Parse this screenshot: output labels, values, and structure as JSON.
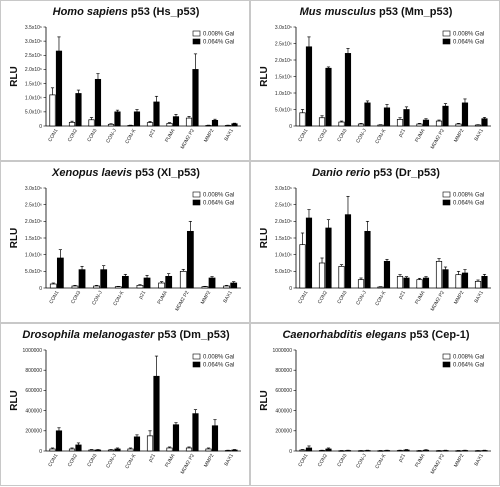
{
  "chart_data": [
    {
      "type": "bar",
      "title_parts": [
        {
          "text": "Homo sapiens",
          "italic": true
        },
        {
          "text": " p53 (Hs_p53)",
          "italic": false
        }
      ],
      "ylabel": "RLU",
      "ylim": [
        0,
        3500000
      ],
      "yticks": [
        0,
        500000,
        1000000,
        1500000,
        2000000,
        2500000,
        3000000,
        3500000
      ],
      "ytick_labels": [
        "0",
        "5.0x10⁵",
        "1.0x10⁶",
        "1.5x10⁶",
        "2.0x10⁶",
        "2.5x10⁶",
        "3.0x10⁶",
        "3.5x10⁶"
      ],
      "categories": [
        "CON1",
        "CON2",
        "CON3",
        "CON-J",
        "CON-K",
        "p21",
        "PUMA",
        "MDM2 P2",
        "MMP2",
        "BAX1"
      ],
      "legend_position": "top-right",
      "series": [
        {
          "name": "0.008% Gal",
          "fill": "#ffffff",
          "values": [
            1100000,
            130000,
            220000,
            60000,
            20000,
            120000,
            90000,
            280000,
            20000,
            20000
          ],
          "errors": [
            250000,
            40000,
            80000,
            20000,
            10000,
            40000,
            30000,
            60000,
            10000,
            10000
          ]
        },
        {
          "name": "0.064% Gal",
          "fill": "#000000",
          "values": [
            2650000,
            1150000,
            1650000,
            500000,
            500000,
            850000,
            330000,
            2000000,
            200000,
            80000
          ],
          "errors": [
            500000,
            120000,
            200000,
            60000,
            80000,
            200000,
            80000,
            550000,
            40000,
            20000
          ]
        }
      ]
    },
    {
      "type": "bar",
      "title_parts": [
        {
          "text": "Mus musculus",
          "italic": true
        },
        {
          "text": " p53 (Mm_p53)",
          "italic": false
        }
      ],
      "ylabel": "RLU",
      "ylim": [
        0,
        3000000
      ],
      "yticks": [
        0,
        500000,
        1000000,
        1500000,
        2000000,
        2500000,
        3000000
      ],
      "ytick_labels": [
        "0",
        "5.0x10⁵",
        "1.0x10⁶",
        "1.5x10⁶",
        "2.0x10⁶",
        "2.5x10⁶",
        "3.0x10⁶"
      ],
      "categories": [
        "CON1",
        "CON2",
        "CON3",
        "CON-J",
        "CON-K",
        "p21",
        "PUMA",
        "MDM2 P2",
        "MMP2",
        "BAX1"
      ],
      "legend_position": "top-right",
      "series": [
        {
          "name": "0.008% Gal",
          "fill": "#ffffff",
          "values": [
            400000,
            250000,
            120000,
            60000,
            30000,
            200000,
            60000,
            150000,
            60000,
            30000
          ],
          "errors": [
            100000,
            60000,
            30000,
            20000,
            10000,
            50000,
            20000,
            30000,
            20000,
            10000
          ]
        },
        {
          "name": "0.064% Gal",
          "fill": "#000000",
          "values": [
            2400000,
            1750000,
            2200000,
            700000,
            550000,
            500000,
            180000,
            600000,
            700000,
            220000
          ],
          "errors": [
            300000,
            40000,
            150000,
            60000,
            100000,
            80000,
            40000,
            80000,
            120000,
            40000
          ]
        }
      ]
    },
    {
      "type": "bar",
      "title_parts": [
        {
          "text": "Xenopus laevis",
          "italic": true
        },
        {
          "text": " p53 (Xl_p53)",
          "italic": false
        }
      ],
      "ylabel": "RLU",
      "ylim": [
        0,
        3000000
      ],
      "yticks": [
        0,
        500000,
        1000000,
        1500000,
        2000000,
        2500000,
        3000000
      ],
      "ytick_labels": [
        "0",
        "5.0x10⁵",
        "1.0x10⁶",
        "1.5x10⁶",
        "2.0x10⁶",
        "2.5x10⁶",
        "3.0x10⁶"
      ],
      "categories": [
        "CON1",
        "CON3",
        "CON-J",
        "CON-K",
        "p21",
        "PUMA",
        "MDM2 P2",
        "MMP2",
        "BAX1"
      ],
      "legend_position": "top-right",
      "series": [
        {
          "name": "0.008% Gal",
          "fill": "#ffffff",
          "values": [
            120000,
            60000,
            60000,
            40000,
            80000,
            150000,
            500000,
            40000,
            60000
          ],
          "errors": [
            30000,
            20000,
            20000,
            10000,
            20000,
            40000,
            60000,
            10000,
            20000
          ]
        },
        {
          "name": "0.064% Gal",
          "fill": "#000000",
          "values": [
            900000,
            550000,
            550000,
            350000,
            300000,
            350000,
            1700000,
            300000,
            150000
          ],
          "errors": [
            250000,
            100000,
            120000,
            60000,
            80000,
            80000,
            300000,
            40000,
            40000
          ]
        }
      ]
    },
    {
      "type": "bar",
      "title_parts": [
        {
          "text": "Danio rerio",
          "italic": true
        },
        {
          "text": " p53 (Dr_p53)",
          "italic": false
        }
      ],
      "ylabel": "RLU",
      "ylim": [
        0,
        3000000
      ],
      "yticks": [
        0,
        500000,
        1000000,
        1500000,
        2000000,
        2500000,
        3000000
      ],
      "ytick_labels": [
        "0",
        "5.0x10⁵",
        "1.0x10⁶",
        "1.5x10⁶",
        "2.0x10⁶",
        "2.5x10⁶",
        "3.0x10⁶"
      ],
      "categories": [
        "CON1",
        "CON2",
        "CON3",
        "CON-J",
        "CON-K",
        "p21",
        "PUMA",
        "MDM2 P2",
        "MMP2",
        "BAX1"
      ],
      "legend_position": "top-right",
      "series": [
        {
          "name": "0.008% Gal",
          "fill": "#ffffff",
          "values": [
            1300000,
            750000,
            650000,
            250000,
            30000,
            350000,
            250000,
            800000,
            400000,
            200000
          ],
          "errors": [
            350000,
            150000,
            50000,
            50000,
            10000,
            50000,
            40000,
            80000,
            100000,
            40000
          ]
        },
        {
          "name": "0.064% Gal",
          "fill": "#000000",
          "values": [
            2100000,
            1800000,
            2200000,
            1700000,
            800000,
            300000,
            300000,
            550000,
            450000,
            350000
          ],
          "errors": [
            250000,
            250000,
            550000,
            300000,
            60000,
            40000,
            40000,
            80000,
            100000,
            60000
          ]
        }
      ]
    },
    {
      "type": "bar",
      "title_parts": [
        {
          "text": "Drosophila melanogaster",
          "italic": true
        },
        {
          "text": " p53 (Dm_p53)",
          "italic": false
        }
      ],
      "ylabel": "RLU",
      "ylim": [
        0,
        1000000
      ],
      "yticks": [
        0,
        200000,
        400000,
        600000,
        800000,
        1000000
      ],
      "ytick_labels": [
        "0",
        "200000",
        "400000",
        "600000",
        "800000",
        "1000000"
      ],
      "categories": [
        "CON1",
        "CON2",
        "CON3",
        "CON-J",
        "CON-K",
        "p21",
        "PUMA",
        "MDM2 P2",
        "MMP2",
        "BAX1"
      ],
      "legend_position": "top-right",
      "series": [
        {
          "name": "0.008% Gal",
          "fill": "#ffffff",
          "values": [
            20000,
            20000,
            10000,
            10000,
            20000,
            150000,
            30000,
            30000,
            20000,
            5000
          ],
          "errors": [
            10000,
            10000,
            5000,
            5000,
            10000,
            50000,
            10000,
            10000,
            10000,
            3000
          ]
        },
        {
          "name": "0.064% Gal",
          "fill": "#000000",
          "values": [
            200000,
            60000,
            10000,
            20000,
            140000,
            740000,
            260000,
            370000,
            250000,
            10000
          ],
          "errors": [
            30000,
            20000,
            5000,
            10000,
            20000,
            200000,
            20000,
            40000,
            60000,
            5000
          ]
        }
      ]
    },
    {
      "type": "bar",
      "title_parts": [
        {
          "text": "Caenorhabditis elegans",
          "italic": true
        },
        {
          "text": " p53 (Cep-1)",
          "italic": false
        }
      ],
      "ylabel": "RLU",
      "ylim": [
        0,
        1000000
      ],
      "yticks": [
        0,
        200000,
        400000,
        600000,
        800000,
        1000000
      ],
      "ytick_labels": [
        "0",
        "200000",
        "400000",
        "600000",
        "800000",
        "1000000"
      ],
      "categories": [
        "CON1",
        "CON2",
        "CON3",
        "CON-J",
        "CON-K",
        "p21",
        "PUMA",
        "MDM2 P2",
        "MMP2",
        "BAX1"
      ],
      "legend_position": "top-right",
      "series": [
        {
          "name": "0.008% Gal",
          "fill": "#ffffff",
          "values": [
            10000,
            5000,
            3000,
            3000,
            3000,
            5000,
            3000,
            3000,
            3000,
            3000
          ],
          "errors": [
            5000,
            3000,
            2000,
            2000,
            2000,
            3000,
            2000,
            2000,
            2000,
            2000
          ]
        },
        {
          "name": "0.064% Gal",
          "fill": "#000000",
          "values": [
            30000,
            20000,
            5000,
            5000,
            5000,
            10000,
            8000,
            5000,
            5000,
            5000
          ],
          "errors": [
            20000,
            10000,
            3000,
            3000,
            3000,
            5000,
            5000,
            3000,
            3000,
            3000
          ]
        }
      ]
    }
  ]
}
